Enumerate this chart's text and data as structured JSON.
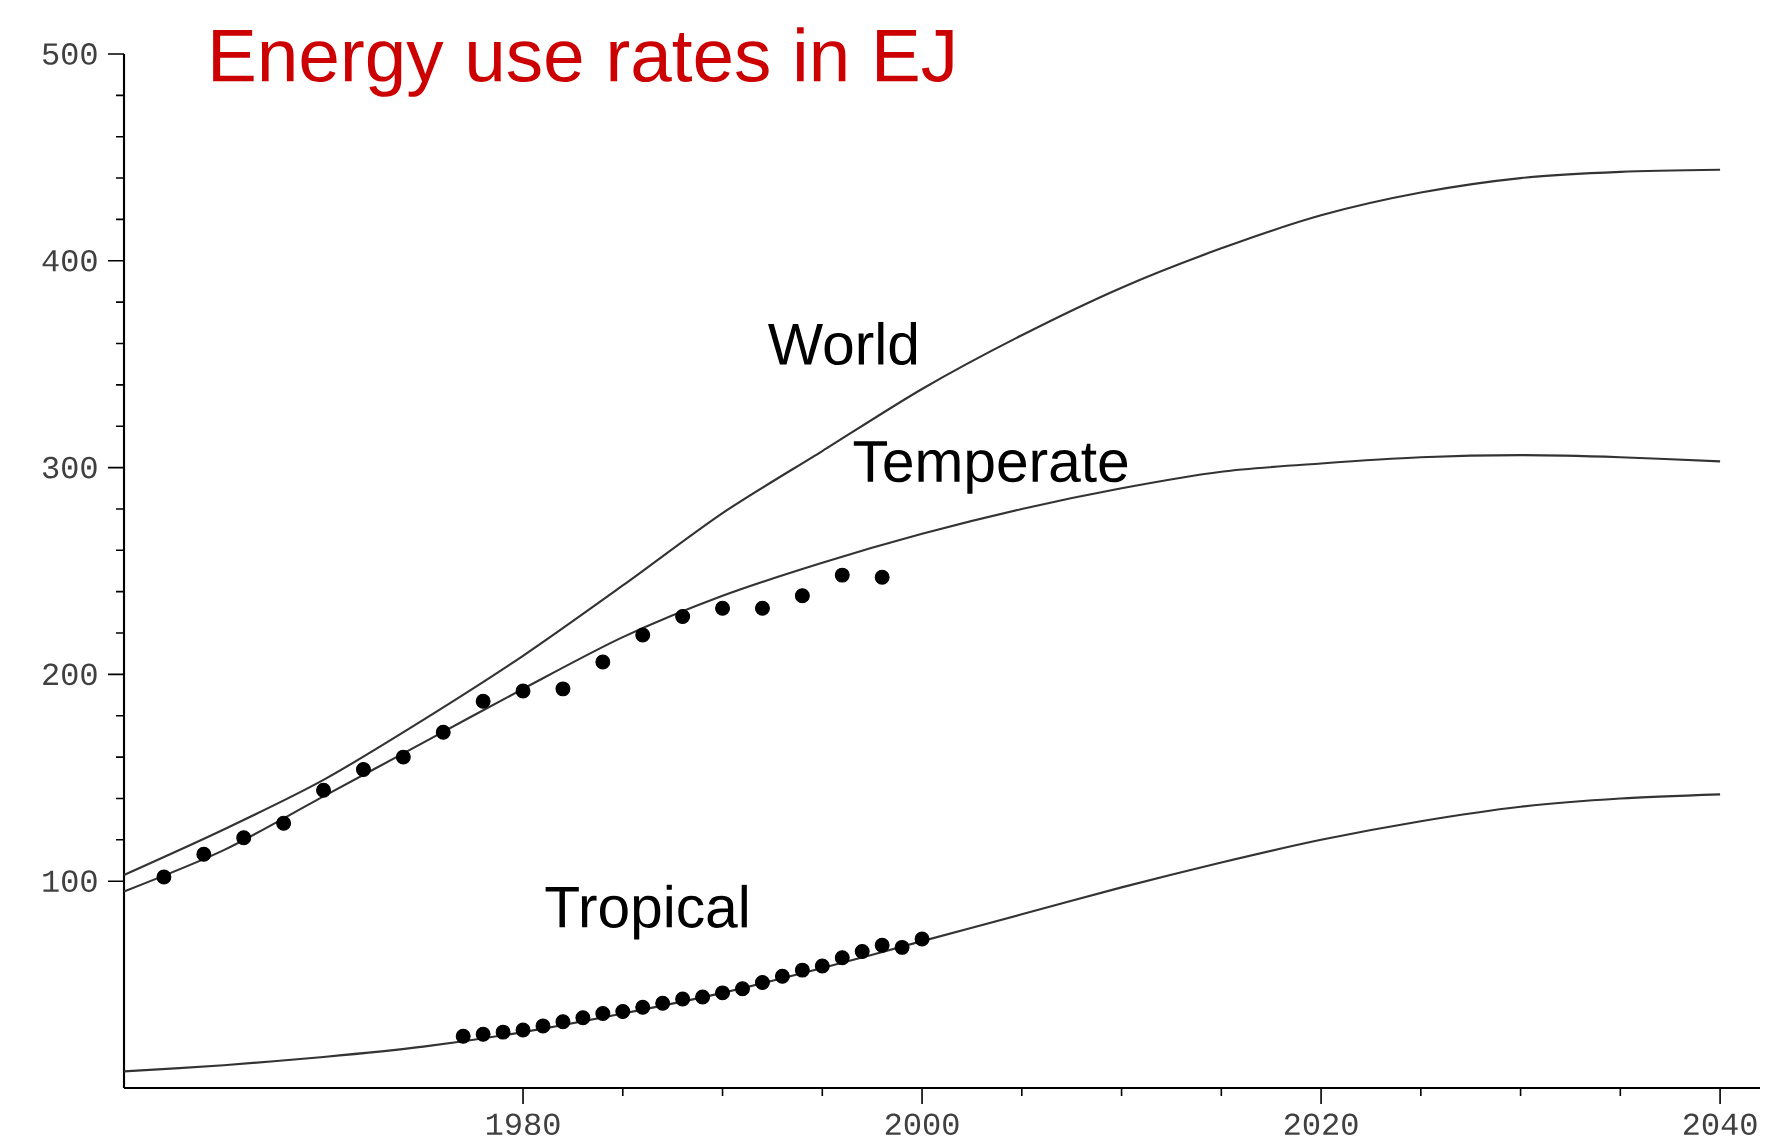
{
  "chart_data": {
    "type": "line",
    "title": "Energy use rates in EJ",
    "xlim": [
      1960,
      2042
    ],
    "ylim": [
      0,
      500
    ],
    "xticks": [
      1980,
      2000,
      2020,
      2040
    ],
    "yticks": [
      100,
      200,
      300,
      400,
      500
    ],
    "legend": false,
    "x": [
      1960,
      1965,
      1970,
      1975,
      1980,
      1985,
      1990,
      1995,
      2000,
      2005,
      2010,
      2015,
      2020,
      2025,
      2030,
      2035,
      2040
    ],
    "series": [
      {
        "name": "World",
        "color": "#333333",
        "values": [
          103,
          125,
          149,
          178,
          209,
          243,
          278,
          308,
          338,
          364,
          387,
          406,
          422,
          433,
          440,
          443,
          444
        ]
      },
      {
        "name": "Temperate",
        "color": "#333333",
        "values": [
          95,
          115,
          141,
          167,
          193,
          218,
          238,
          254,
          268,
          280,
          290,
          298,
          302,
          305,
          306,
          305,
          303
        ]
      },
      {
        "name": "Tropical",
        "color": "#333333",
        "values": [
          8,
          11,
          15,
          20,
          27,
          36,
          46,
          58,
          71,
          84,
          97,
          109,
          120,
          129,
          136,
          140,
          142
        ]
      },
      {
        "type": "scatter",
        "marker": "circle",
        "color": "#000000",
        "x": [
          1962,
          1964,
          1966,
          1968,
          1970,
          1972,
          1974,
          1976,
          1978,
          1980,
          1982,
          1984,
          1986,
          1988,
          1990,
          1992,
          1994,
          1996,
          1998
        ],
        "values": [
          102,
          113,
          121,
          128,
          144,
          154,
          160,
          172,
          187,
          192,
          193,
          206,
          219,
          228,
          232,
          232,
          238,
          248,
          247
        ]
      },
      {
        "type": "scatter",
        "marker": "circle",
        "color": "#000000",
        "x": [
          1977,
          1978,
          1979,
          1980,
          1981,
          1982,
          1983,
          1984,
          1985,
          1986,
          1987,
          1988,
          1989,
          1990,
          1991,
          1992,
          1993,
          1994,
          1995,
          1996,
          1997,
          1998,
          1999,
          2000
        ],
        "values": [
          25,
          26,
          27,
          28,
          30,
          32,
          34,
          36,
          37,
          39,
          41,
          43,
          44,
          46,
          48,
          51,
          54,
          57,
          59,
          63,
          66,
          69,
          68,
          72
        ]
      }
    ]
  }
}
